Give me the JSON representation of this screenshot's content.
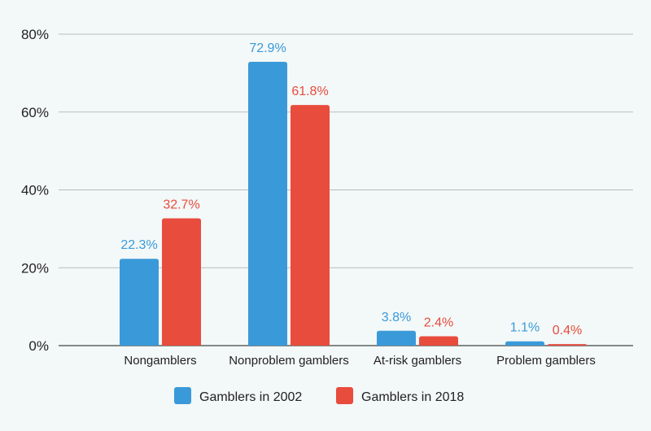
{
  "chart_data": {
    "type": "bar",
    "categories": [
      "Nongamblers",
      "Nonproblem gamblers",
      "At-risk gamblers",
      "Problem gamblers"
    ],
    "series": [
      {
        "name": "Gamblers in 2002",
        "values": [
          22.3,
          72.9,
          3.8,
          1.1
        ],
        "labels": [
          "22.3%",
          "72.9%",
          "3.8%",
          "1.1%"
        ],
        "color": "#3a9ad9"
      },
      {
        "name": "Gamblers in 2018",
        "values": [
          32.7,
          61.8,
          2.4,
          0.4
        ],
        "labels": [
          "32.7%",
          "61.8%",
          "2.4%",
          "0.4%"
        ],
        "color": "#e84c3d"
      }
    ],
    "yticks": [
      0,
      20,
      40,
      60,
      80
    ],
    "ytick_labels": [
      "0%",
      "20%",
      "40%",
      "60%",
      "80%"
    ],
    "ylim": [
      0,
      80
    ],
    "grid": true,
    "legend": "bottom"
  }
}
